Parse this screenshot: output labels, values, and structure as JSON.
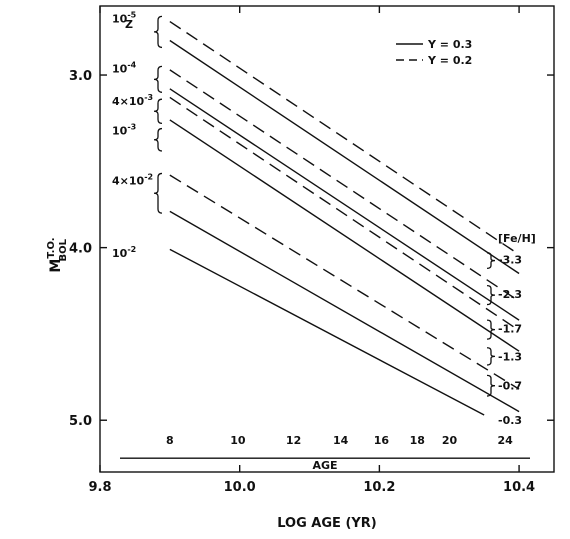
{
  "chart_data": {
    "type": "line",
    "xlabel": "LOG AGE (YR)",
    "ylabel_main": "M",
    "ylabel_sup": "T.O.",
    "ylabel_sub": "BOL",
    "xlim": [
      9.8,
      10.45
    ],
    "ylim": [
      2.6,
      5.3
    ],
    "y_inverted": true,
    "x_ticks": [
      9.8,
      10.0,
      10.2,
      10.4
    ],
    "x_tick_labels": [
      "9.8",
      "10.0",
      "10.2",
      "10.4"
    ],
    "y_ticks": [
      3.0,
      4.0,
      5.0
    ],
    "y_tick_labels": [
      "3.0",
      "4.0",
      "5.0"
    ],
    "legend": [
      {
        "label": "Y = 0.3",
        "style": "solid"
      },
      {
        "label": "Y = 0.2",
        "style": "dashed"
      }
    ],
    "z_header": "Z",
    "feh_header": "[Fe/H]",
    "series": [
      {
        "z": "10-5",
        "feh": "-3.3",
        "y_helium": 0.2,
        "style": "dashed",
        "x": [
          9.9,
          10.4
        ],
        "y": [
          2.69,
          4.04
        ]
      },
      {
        "z": "10-5",
        "feh": "-3.3",
        "y_helium": 0.3,
        "style": "solid",
        "x": [
          9.9,
          10.4
        ],
        "y": [
          2.8,
          4.15
        ]
      },
      {
        "z": "10-4",
        "feh": "-2.3",
        "y_helium": 0.2,
        "style": "dashed",
        "x": [
          9.9,
          10.4
        ],
        "y": [
          2.97,
          4.31
        ]
      },
      {
        "z": "10-4",
        "feh": "-2.3",
        "y_helium": 0.3,
        "style": "solid",
        "x": [
          9.9,
          10.4
        ],
        "y": [
          3.08,
          4.42
        ]
      },
      {
        "z": "4x10-3",
        "feh": "-1.7",
        "y_helium": 0.2,
        "style": "dashed",
        "x": [
          9.9,
          10.4
        ],
        "y": [
          3.13,
          4.48
        ]
      },
      {
        "z": "4x10-3",
        "feh": "-1.7",
        "y_helium": 0.3,
        "style": "solid",
        "x": [
          9.9,
          10.4
        ],
        "y": [
          3.26,
          4.6
        ]
      },
      {
        "z": "10-3",
        "feh": "-1.3",
        "y_helium": 0.2,
        "style": "dashed",
        "x": [
          9.9,
          10.4
        ],
        "y": [
          3.58,
          4.82
        ]
      },
      {
        "z": "10-3",
        "feh": "-1.3",
        "y_helium": 0.3,
        "style": "solid",
        "x": [
          9.9,
          10.4
        ],
        "y": [
          3.79,
          4.95
        ]
      },
      {
        "z": "4x10-2",
        "feh": "-0.7",
        "y_helium": 0.3,
        "style": "solid",
        "x": [
          9.9,
          10.35
        ],
        "y": [
          4.01,
          4.97
        ]
      }
    ],
    "z_labels": [
      {
        "base": "10",
        "exp": "-5",
        "y": 2.66
      },
      {
        "base": "10",
        "exp": "-4",
        "y": 2.95
      },
      {
        "base": "4×10",
        "exp": "-3",
        "y": 3.14
      },
      {
        "base": "10",
        "exp": "-3",
        "y": 3.31
      },
      {
        "base": "4×10",
        "exp": "-2",
        "y": 3.6
      },
      {
        "base": "10",
        "exp": "-2",
        "y": 4.02
      }
    ],
    "z_braces": [
      {
        "y_top": 2.66,
        "y_bot": 2.84
      },
      {
        "y_top": 2.95,
        "y_bot": 3.1
      },
      {
        "y_top": 3.14,
        "y_bot": 3.28
      },
      {
        "y_top": 3.31,
        "y_bot": 3.44
      },
      {
        "y_top": 3.57,
        "y_bot": 3.8
      }
    ],
    "feh_labels": [
      {
        "text": "-3.3",
        "y": 4.07
      },
      {
        "text": "-2.3",
        "y": 4.27
      },
      {
        "text": "-1.7",
        "y": 4.47
      },
      {
        "text": "-1.3",
        "y": 4.63
      },
      {
        "text": "-0.7",
        "y": 4.8
      },
      {
        "text": "-0.3",
        "y": 5.0
      }
    ],
    "feh_braces": [
      {
        "y_top": 4.03,
        "y_bot": 4.12
      },
      {
        "y_top": 4.22,
        "y_bot": 4.33
      },
      {
        "y_top": 4.42,
        "y_bot": 4.53
      },
      {
        "y_top": 4.58,
        "y_bot": 4.68
      },
      {
        "y_top": 4.74,
        "y_bot": 4.86
      }
    ],
    "age_axis": {
      "title": "AGE",
      "ticks": [
        8,
        10,
        12,
        14,
        16,
        18,
        20,
        24
      ],
      "tick_labels": [
        "8",
        "10",
        "12",
        "14",
        "16",
        "18",
        "20",
        "24"
      ],
      "y": 5.22
    }
  }
}
